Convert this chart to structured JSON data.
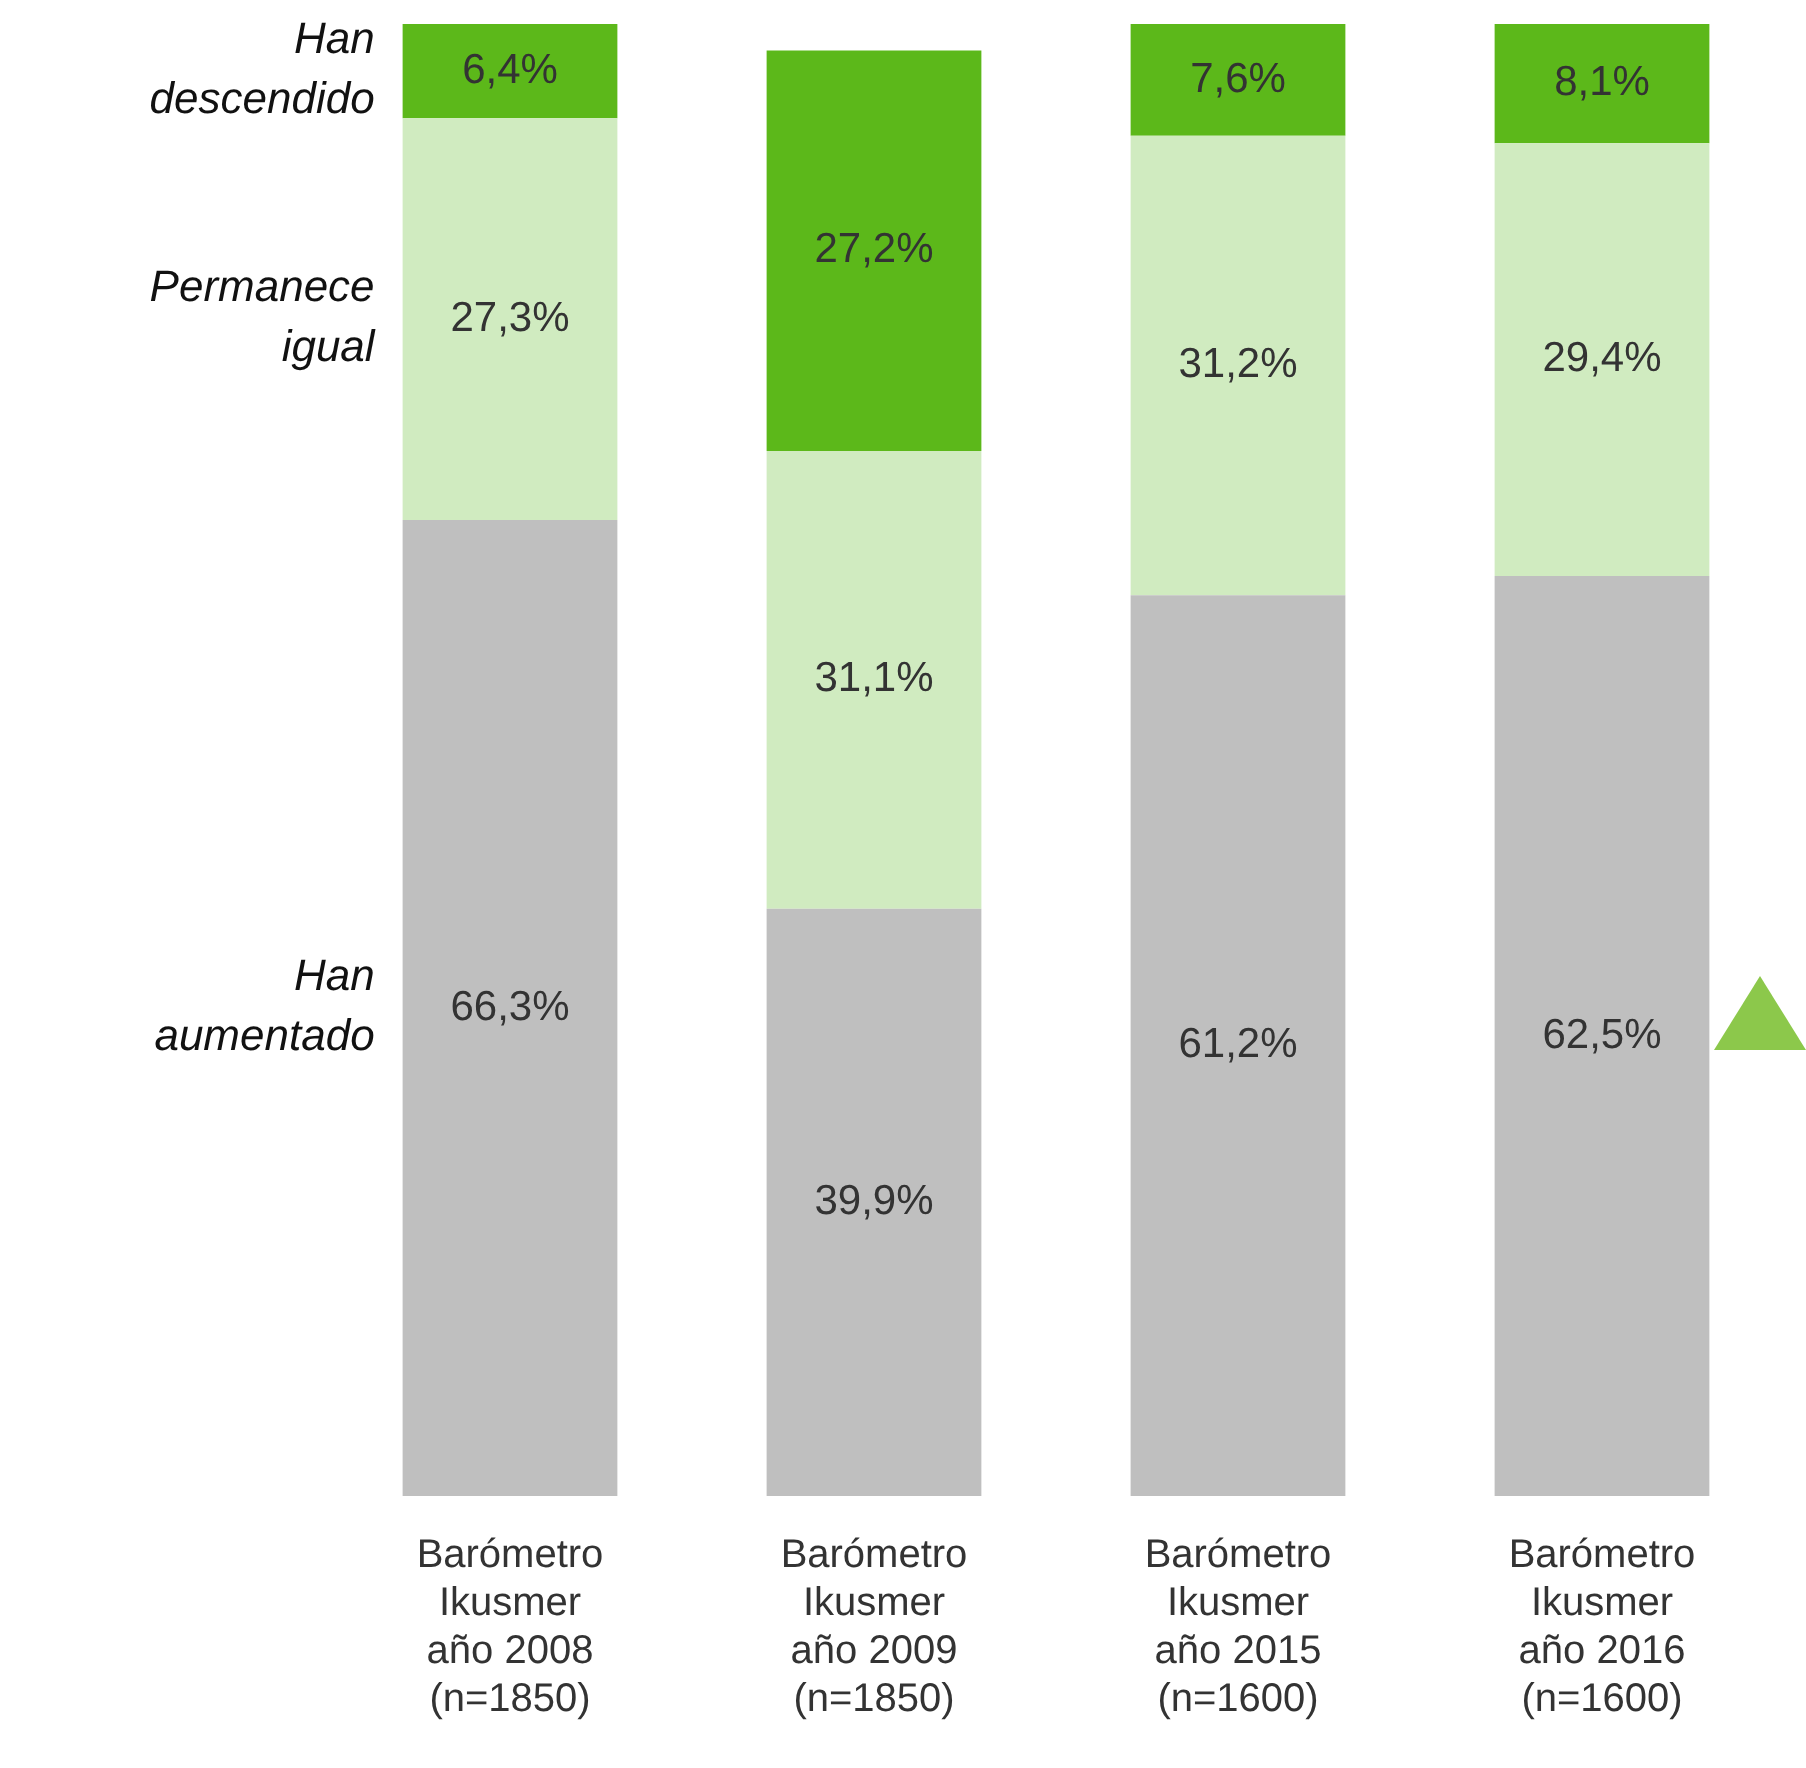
{
  "chart_data": {
    "type": "bar",
    "stacked": true,
    "legend": false,
    "categories": [
      "Barómetro Ikusmer año 2008 (n=1850)",
      "Barómetro Ikusmer año 2009 (n=1850)",
      "Barómetro Ikusmer año 2015 (n=1600)",
      "Barómetro Ikusmer año 2016 (n=1600)"
    ],
    "series": [
      {
        "name": "Han aumentado",
        "color": "#bfbfbf",
        "values": [
          66.3,
          39.9,
          61.2,
          62.5
        ],
        "value_labels": [
          "66,3%",
          "39,9%",
          "61,2%",
          "62,5%"
        ]
      },
      {
        "name": "Permanece igual",
        "color": "#d0ebc0",
        "values": [
          27.3,
          31.1,
          31.2,
          29.4
        ],
        "value_labels": [
          "27,3%",
          "31,1%",
          "31,2%",
          "29,4%"
        ]
      },
      {
        "name": "Han descendido",
        "color": "#5cb81a",
        "values": [
          6.4,
          27.2,
          7.6,
          8.1
        ],
        "value_labels": [
          "6,4%",
          "27,2%",
          "7,6%",
          "8,1%"
        ]
      }
    ]
  }
}
